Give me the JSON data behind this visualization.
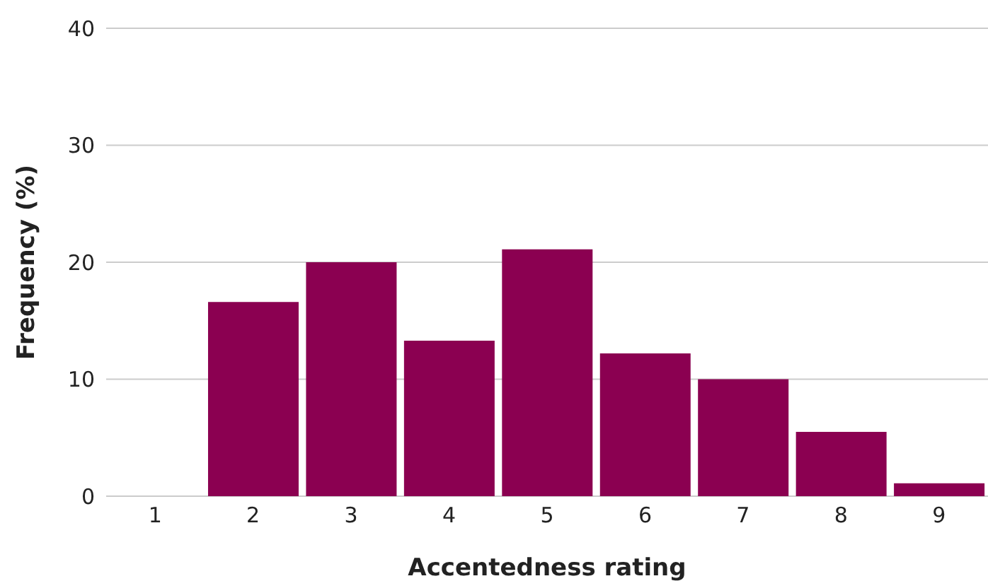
{
  "chart_data": {
    "type": "bar",
    "xlabel": "Accentedness rating",
    "ylabel": "Frequency (%)",
    "categories": [
      "1",
      "2",
      "3",
      "4",
      "5",
      "6",
      "7",
      "8",
      "9"
    ],
    "values": [
      0,
      16.6,
      20,
      13.3,
      21.1,
      12.2,
      10,
      5.5,
      1.1
    ],
    "color": "#8b0051",
    "ylim": [
      0,
      40
    ],
    "yticks": [
      0,
      10,
      20,
      30,
      40
    ],
    "grid": "y"
  }
}
